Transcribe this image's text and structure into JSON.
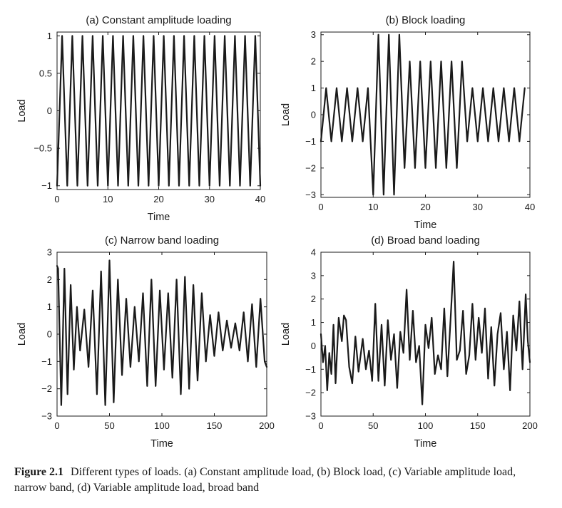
{
  "caption": {
    "label": "Figure 2.1",
    "text": "Different types of loads. (a) Constant amplitude load, (b) Block load, (c) Variable amplitude load, narrow band, (d) Variable amplitude load, broad band"
  },
  "chart_data": [
    {
      "id": "a",
      "type": "line",
      "title": "(a) Constant amplitude loading",
      "xlabel": "Time",
      "ylabel": "Load",
      "xlim": [
        0,
        40
      ],
      "ylim": [
        -1.05,
        1.05
      ],
      "xticks": [
        0,
        10,
        20,
        30,
        40
      ],
      "yticks": [
        -1,
        -0.5,
        0,
        0.5,
        1
      ],
      "ytick_labels": [
        "−1",
        "−0.5",
        "0",
        "0.5",
        "1"
      ],
      "series": [
        {
          "x": [
            0,
            1,
            2,
            3,
            4,
            5,
            6,
            7,
            8,
            9,
            10,
            11,
            12,
            13,
            14,
            15,
            16,
            17,
            18,
            19,
            20,
            21,
            22,
            23,
            24,
            25,
            26,
            27,
            28,
            29,
            30,
            31,
            32,
            33,
            34,
            35,
            36,
            37,
            38,
            39,
            40
          ],
          "y": [
            -1,
            1,
            -1,
            1,
            -1,
            1,
            -1,
            1,
            -1,
            1,
            -1,
            1,
            -1,
            1,
            -1,
            1,
            -1,
            1,
            -1,
            1,
            -1,
            1,
            -1,
            1,
            -1,
            1,
            -1,
            1,
            -1,
            1,
            -1,
            1,
            -1,
            1,
            -1,
            1,
            -1,
            1,
            -1,
            1,
            -1
          ]
        }
      ]
    },
    {
      "id": "b",
      "type": "line",
      "title": "(b) Block loading",
      "xlabel": "Time",
      "ylabel": "Load",
      "xlim": [
        0,
        40
      ],
      "ylim": [
        -3.1,
        3.1
      ],
      "xticks": [
        0,
        10,
        20,
        30,
        40
      ],
      "yticks": [
        -3,
        -2,
        -1,
        0,
        1,
        2,
        3
      ],
      "ytick_labels": [
        "−3",
        "−2",
        "−1",
        "0",
        "1",
        "2",
        "3"
      ],
      "series": [
        {
          "x": [
            0,
            1,
            2,
            3,
            4,
            5,
            6,
            7,
            8,
            9,
            10,
            11,
            12,
            13,
            14,
            15,
            16,
            17,
            18,
            19,
            20,
            21,
            22,
            23,
            24,
            25,
            26,
            27,
            28,
            29,
            30,
            31,
            32,
            33,
            34,
            35,
            36,
            37,
            38,
            39
          ],
          "y": [
            -1,
            1,
            -1,
            1,
            -1,
            1,
            -1,
            1,
            -1,
            1,
            -3,
            3,
            -3,
            3,
            -3,
            3,
            -2,
            2,
            -2,
            2,
            -2,
            2,
            -2,
            2,
            -2,
            2,
            -2,
            2,
            -1,
            1,
            -1,
            1,
            -1,
            1,
            -1,
            1,
            -1,
            1,
            -1,
            1
          ]
        }
      ]
    },
    {
      "id": "c",
      "type": "line",
      "title": "(c) Narrow band loading",
      "xlabel": "Time",
      "ylabel": "Load",
      "xlim": [
        0,
        200
      ],
      "ylim": [
        -3,
        3
      ],
      "xticks": [
        0,
        50,
        100,
        150,
        200
      ],
      "yticks": [
        -3,
        -2,
        -1,
        0,
        1,
        2,
        3
      ],
      "ytick_labels": [
        "−3",
        "−2",
        "−1",
        "0",
        "1",
        "2",
        "3"
      ],
      "series": [
        {
          "x": [
            0,
            1,
            4,
            7,
            10,
            13,
            16,
            19,
            22,
            26,
            30,
            34,
            38,
            42,
            46,
            50,
            54,
            58,
            62,
            66,
            70,
            74,
            78,
            82,
            86,
            90,
            94,
            98,
            102,
            106,
            110,
            114,
            118,
            122,
            126,
            130,
            134,
            138,
            142,
            146,
            150,
            154,
            158,
            162,
            166,
            170,
            174,
            178,
            182,
            186,
            190,
            194,
            198,
            200
          ],
          "y": [
            2.5,
            2.4,
            -2.6,
            2.4,
            -2.2,
            1.8,
            -1.3,
            1.0,
            -0.6,
            0.9,
            -1.2,
            1.6,
            -2.2,
            2.3,
            -2.6,
            2.7,
            -2.5,
            2.0,
            -1.5,
            1.3,
            -1.2,
            1.0,
            -1.0,
            1.5,
            -1.9,
            2.0,
            -1.9,
            1.6,
            -1.3,
            1.5,
            -1.6,
            2.0,
            -2.2,
            2.1,
            -2.0,
            1.8,
            -1.7,
            1.5,
            -1.0,
            0.7,
            -0.8,
            0.8,
            -0.6,
            0.5,
            -0.5,
            0.4,
            -0.6,
            0.8,
            -1.0,
            1.1,
            -1.2,
            1.3,
            -1.0,
            -1.2
          ]
        }
      ]
    },
    {
      "id": "d",
      "type": "line",
      "title": "(d) Broad band loading",
      "xlabel": "Time",
      "ylabel": "Load",
      "xlim": [
        0,
        200
      ],
      "ylim": [
        -3,
        4
      ],
      "xticks": [
        0,
        50,
        100,
        150,
        200
      ],
      "yticks": [
        -3,
        -2,
        -1,
        0,
        1,
        2,
        3,
        4
      ],
      "ytick_labels": [
        "−3",
        "−2",
        "−1",
        "0",
        "1",
        "2",
        "3",
        "4"
      ],
      "series": [
        {
          "x": [
            0,
            2,
            4,
            6,
            8,
            10,
            12,
            14,
            17,
            20,
            22,
            24,
            27,
            30,
            33,
            36,
            40,
            43,
            46,
            49,
            52,
            55,
            58,
            61,
            64,
            67,
            70,
            73,
            76,
            79,
            82,
            85,
            88,
            91,
            94,
            97,
            100,
            103,
            106,
            109,
            112,
            115,
            118,
            121,
            124,
            127,
            130,
            133,
            136,
            139,
            142,
            145,
            148,
            151,
            154,
            157,
            160,
            163,
            166,
            169,
            172,
            175,
            178,
            181,
            184,
            187,
            190,
            193,
            196,
            198,
            200
          ],
          "y": [
            0.5,
            -0.7,
            0.0,
            -1.9,
            -0.3,
            -1.2,
            0.9,
            -1.6,
            1.2,
            0.2,
            1.3,
            1.1,
            -0.9,
            -1.6,
            0.4,
            -1.1,
            0.3,
            -1.0,
            -0.2,
            -1.5,
            1.8,
            -1.5,
            0.9,
            -1.7,
            1.1,
            -0.6,
            0.5,
            -1.8,
            0.6,
            -0.3,
            2.4,
            -0.6,
            1.5,
            -0.7,
            0.0,
            -2.5,
            0.9,
            -0.1,
            1.2,
            -1.2,
            -0.4,
            -1.0,
            1.6,
            -1.3,
            1.1,
            3.6,
            -0.6,
            -0.2,
            1.5,
            -1.2,
            -0.4,
            1.8,
            -0.6,
            1.2,
            -0.3,
            1.6,
            -1.4,
            0.8,
            -1.7,
            0.5,
            1.4,
            -1.0,
            0.6,
            -1.9,
            1.3,
            -0.2,
            1.9,
            -1.0,
            2.2,
            0.2,
            -0.7
          ]
        }
      ]
    }
  ]
}
